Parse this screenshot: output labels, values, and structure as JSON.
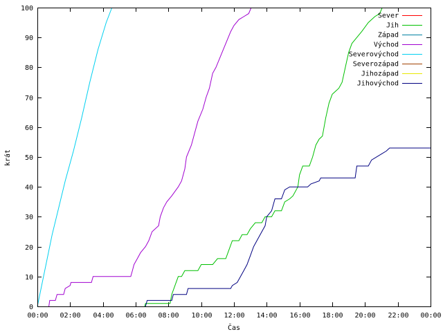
{
  "chart_data": {
    "type": "line",
    "title": "",
    "xlabel": "Čas",
    "ylabel": "krát",
    "xlim": [
      0,
      24
    ],
    "ylim": [
      0,
      100
    ],
    "grid": false,
    "legend_position": "top-right",
    "x_ticks": [
      "00:00",
      "02:00",
      "04:00",
      "06:00",
      "08:00",
      "10:00",
      "12:00",
      "14:00",
      "16:00",
      "18:00",
      "20:00",
      "22:00",
      "00:00"
    ],
    "y_ticks": [
      "0",
      "10",
      "20",
      "30",
      "40",
      "50",
      "60",
      "70",
      "80",
      "90",
      "100"
    ],
    "series": [
      {
        "name": "Sever",
        "color": "#ff0000",
        "points": []
      },
      {
        "name": "Jih",
        "color": "#00c000",
        "points": [
          [
            6.55,
            0
          ],
          [
            6.6,
            1
          ],
          [
            7.3,
            1
          ],
          [
            8.1,
            1
          ],
          [
            8.2,
            4
          ],
          [
            8.4,
            7
          ],
          [
            8.6,
            10
          ],
          [
            8.8,
            10
          ],
          [
            9.0,
            12
          ],
          [
            9.8,
            12
          ],
          [
            10.0,
            14
          ],
          [
            10.7,
            14
          ],
          [
            11.0,
            16
          ],
          [
            11.5,
            16
          ],
          [
            11.7,
            19
          ],
          [
            11.9,
            22
          ],
          [
            12.3,
            22
          ],
          [
            12.5,
            24
          ],
          [
            12.8,
            24
          ],
          [
            13.0,
            26
          ],
          [
            13.3,
            28
          ],
          [
            13.7,
            28
          ],
          [
            13.9,
            30
          ],
          [
            14.3,
            30
          ],
          [
            14.5,
            32
          ],
          [
            14.9,
            32
          ],
          [
            15.1,
            35
          ],
          [
            15.4,
            36
          ],
          [
            15.6,
            37
          ],
          [
            15.9,
            40
          ],
          [
            16.0,
            44
          ],
          [
            16.2,
            47
          ],
          [
            16.6,
            47
          ],
          [
            16.8,
            50
          ],
          [
            17.0,
            54
          ],
          [
            17.2,
            56
          ],
          [
            17.4,
            57
          ],
          [
            17.6,
            63
          ],
          [
            17.8,
            68
          ],
          [
            18.0,
            71
          ],
          [
            18.2,
            72
          ],
          [
            18.4,
            73
          ],
          [
            18.6,
            75
          ],
          [
            18.8,
            80
          ],
          [
            19.0,
            85
          ],
          [
            19.2,
            88
          ],
          [
            19.5,
            90
          ],
          [
            19.8,
            92
          ],
          [
            20.2,
            95
          ],
          [
            20.6,
            97
          ],
          [
            20.9,
            98
          ],
          [
            21.05,
            100
          ]
        ]
      },
      {
        "name": "Západ",
        "color": "#0080a0",
        "points": []
      },
      {
        "name": "Východ",
        "color": "#a000d0",
        "points": [
          [
            0.7,
            0
          ],
          [
            0.75,
            2
          ],
          [
            1.1,
            2
          ],
          [
            1.2,
            4
          ],
          [
            1.6,
            4
          ],
          [
            1.7,
            6
          ],
          [
            2.0,
            7
          ],
          [
            2.05,
            8
          ],
          [
            3.3,
            8
          ],
          [
            3.4,
            10
          ],
          [
            5.7,
            10
          ],
          [
            5.8,
            12
          ],
          [
            5.9,
            14
          ],
          [
            6.1,
            16
          ],
          [
            6.3,
            18
          ],
          [
            6.6,
            20
          ],
          [
            6.8,
            22
          ],
          [
            7.0,
            25
          ],
          [
            7.4,
            27
          ],
          [
            7.5,
            30
          ],
          [
            7.7,
            33
          ],
          [
            7.9,
            35
          ],
          [
            8.2,
            37
          ],
          [
            8.6,
            40
          ],
          [
            8.8,
            42
          ],
          [
            9.0,
            46
          ],
          [
            9.1,
            50
          ],
          [
            9.4,
            54
          ],
          [
            9.6,
            58
          ],
          [
            9.8,
            62
          ],
          [
            10.1,
            66
          ],
          [
            10.3,
            70
          ],
          [
            10.5,
            73
          ],
          [
            10.7,
            78
          ],
          [
            10.9,
            80
          ],
          [
            11.2,
            84
          ],
          [
            11.5,
            88
          ],
          [
            11.8,
            92
          ],
          [
            12.0,
            94
          ],
          [
            12.3,
            96
          ],
          [
            12.6,
            97
          ],
          [
            12.9,
            98
          ],
          [
            13.05,
            100
          ]
        ]
      },
      {
        "name": "Severovýchod",
        "color": "#00d0f0",
        "points": [
          [
            0,
            0
          ],
          [
            0.3,
            8
          ],
          [
            0.6,
            16
          ],
          [
            0.9,
            24
          ],
          [
            1.3,
            33
          ],
          [
            1.7,
            42
          ],
          [
            2.2,
            52
          ],
          [
            2.7,
            63
          ],
          [
            3.2,
            75
          ],
          [
            3.7,
            86
          ],
          [
            4.2,
            95
          ],
          [
            4.55,
            100
          ]
        ]
      },
      {
        "name": "Severozápad",
        "color": "#a04000",
        "points": []
      },
      {
        "name": "Jihozápad",
        "color": "#e8e800",
        "points": []
      },
      {
        "name": "Jihovýchod",
        "color": "#000080",
        "points": [
          [
            6.6,
            0
          ],
          [
            6.7,
            2
          ],
          [
            8.2,
            2
          ],
          [
            8.3,
            4
          ],
          [
            9.1,
            4
          ],
          [
            9.2,
            6
          ],
          [
            11.8,
            6
          ],
          [
            11.9,
            7
          ],
          [
            12.2,
            8
          ],
          [
            12.4,
            10
          ],
          [
            12.6,
            12
          ],
          [
            12.8,
            14
          ],
          [
            13.0,
            17
          ],
          [
            13.2,
            20
          ],
          [
            13.4,
            22
          ],
          [
            13.6,
            24
          ],
          [
            13.9,
            27
          ],
          [
            14.0,
            30
          ],
          [
            14.3,
            32
          ],
          [
            14.5,
            36
          ],
          [
            14.9,
            36
          ],
          [
            15.1,
            39
          ],
          [
            15.4,
            40
          ],
          [
            16.5,
            40
          ],
          [
            16.7,
            41
          ],
          [
            17.2,
            42
          ],
          [
            17.3,
            43
          ],
          [
            19.4,
            43
          ],
          [
            19.5,
            47
          ],
          [
            20.2,
            47
          ],
          [
            20.4,
            49
          ],
          [
            21.0,
            51
          ],
          [
            21.3,
            52
          ],
          [
            21.5,
            53
          ],
          [
            24.0,
            53
          ]
        ]
      }
    ]
  }
}
